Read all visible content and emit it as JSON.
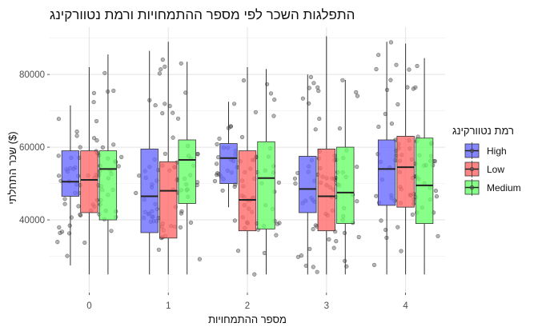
{
  "chart_data": {
    "type": "boxplot",
    "title": "התפלגות השכר לפי מספר ההתמחויות ורמת נטוורקינג",
    "xlabel": "מספר ההתמחויות",
    "ylabel": "שכר התחלתי ($)",
    "categories": [
      "0",
      "1",
      "2",
      "3",
      "4"
    ],
    "yticks": [
      40000,
      60000,
      80000
    ],
    "ytick_labels": [
      "40000",
      "60000",
      "80000"
    ],
    "ylim": [
      20000,
      93000
    ],
    "grid": true,
    "legend": {
      "title": "רמת נטוורקינג",
      "placement": "right"
    },
    "series": [
      {
        "name": "High",
        "color": "#6666ff",
        "boxes": [
          {
            "category": "0",
            "whisker_low": 27500,
            "q1": 46500,
            "median": 50500,
            "q3": 59000,
            "whisker_high": 71500
          },
          {
            "category": "1",
            "whisker_low": 25000,
            "q1": 36500,
            "median": 46500,
            "q3": 59500,
            "whisker_high": 86500
          },
          {
            "category": "2",
            "whisker_low": 43500,
            "q1": 50000,
            "median": 57000,
            "q3": 61000,
            "whisker_high": 72500
          },
          {
            "category": "3",
            "whisker_low": 25000,
            "q1": 42000,
            "median": 48500,
            "q3": 57500,
            "whisker_high": 80000
          },
          {
            "category": "4",
            "whisker_low": 25000,
            "q1": 44000,
            "median": 54000,
            "q3": 62000,
            "whisker_high": 89000
          }
        ]
      },
      {
        "name": "Low",
        "color": "#ff6666",
        "boxes": [
          {
            "category": "0",
            "whisker_low": 25000,
            "q1": 42000,
            "median": 51000,
            "q3": 59000,
            "whisker_high": 82000
          },
          {
            "category": "1",
            "whisker_low": 25000,
            "q1": 35000,
            "median": 48000,
            "q3": 56000,
            "whisker_high": 89000
          },
          {
            "category": "2",
            "whisker_low": 25000,
            "q1": 37000,
            "median": 45500,
            "q3": 59000,
            "whisker_high": 82000
          },
          {
            "category": "3",
            "whisker_low": 25000,
            "q1": 37000,
            "median": 46500,
            "q3": 59500,
            "whisker_high": 90500
          },
          {
            "category": "4",
            "whisker_low": 25000,
            "q1": 43500,
            "median": 54500,
            "q3": 63000,
            "whisker_high": 88500
          }
        ]
      },
      {
        "name": "Medium",
        "color": "#66ff66",
        "boxes": [
          {
            "category": "0",
            "whisker_low": 25000,
            "q1": 40000,
            "median": 54000,
            "q3": 59000,
            "whisker_high": 85500
          },
          {
            "category": "1",
            "whisker_low": 25000,
            "q1": 44500,
            "median": 56500,
            "q3": 62000,
            "whisker_high": 83500
          },
          {
            "category": "2",
            "whisker_low": 25000,
            "q1": 37500,
            "median": 51500,
            "q3": 61500,
            "whisker_high": 81500
          },
          {
            "category": "3",
            "whisker_low": 25000,
            "q1": 39000,
            "median": 47500,
            "q3": 60000,
            "whisker_high": 78500
          },
          {
            "category": "4",
            "whisker_low": 25000,
            "q1": 39000,
            "median": 49500,
            "q3": 62500,
            "whisker_high": 84500
          }
        ]
      }
    ]
  }
}
